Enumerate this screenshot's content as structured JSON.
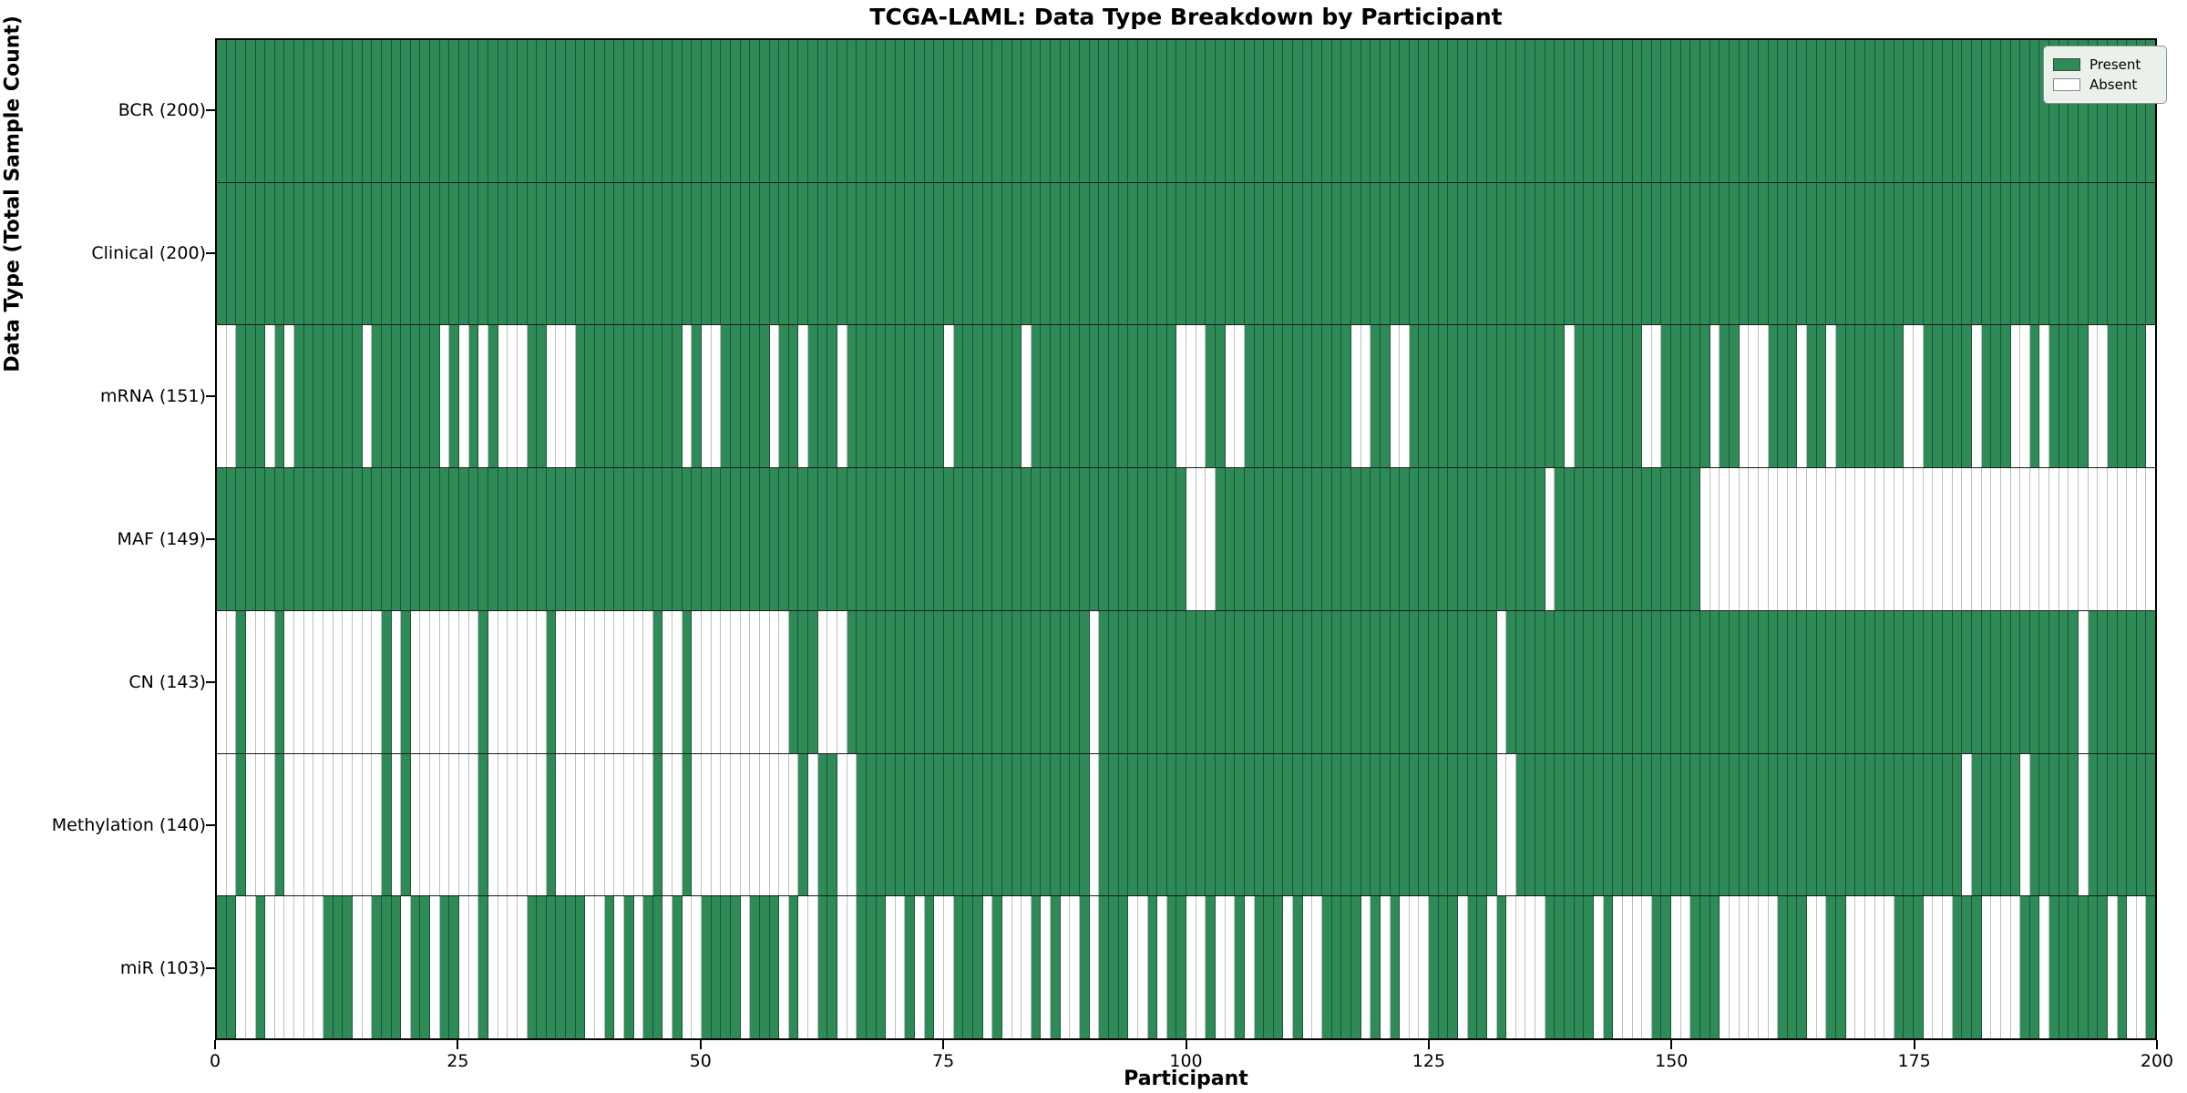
{
  "title": "TCGA-LAML: Data Type Breakdown by Participant",
  "xlabel": "Participant",
  "ylabel": "Data Type (Total Sample Count)",
  "legend": {
    "present_label": "Present",
    "absent_label": "Absent"
  },
  "colors": {
    "present": "#2e8b57",
    "absent": "#ffffff",
    "legend_bg": "#e9f1ea"
  },
  "chart_data": {
    "type": "heatmap",
    "title": "TCGA-LAML: Data Type Breakdown by Participant",
    "xlabel": "Participant",
    "ylabel": "Data Type (Total Sample Count)",
    "x_range": [
      0,
      200
    ],
    "x_ticks": [
      "0",
      "25",
      "50",
      "75",
      "100",
      "125",
      "150",
      "175",
      "200"
    ],
    "legend": [
      "Present",
      "Absent"
    ],
    "legend_position": "upper right",
    "grid": false,
    "n_participants": 200,
    "rows": [
      {
        "label": "BCR (200)",
        "name": "BCR",
        "total": 200,
        "pattern": "11111111111111111111111111111111111111111111111111111111111111111111111111111111111111111111111111111111111111111111111111111111111111111111111111111111111111111111111111111111111111111111111111111111"
      },
      {
        "label": "Clinical (200)",
        "name": "Clinical",
        "total": 200,
        "pattern": "11111111111111111111111111111111111111111111111111111111111111111111111111111111111111111111111111111111111111111111111111111111111111111111111111111111111111111111111111111111111111111111111111111111"
      },
      {
        "label": "mRNA (151)",
        "name": "mRNA",
        "total": 151,
        "pattern": "00111010111111101111111010101000110001111111111101001111101101110111111111101111111011111111111111100011001111111111100110011111111111111110111111100111110110001110110111111100111110111001011110011110"
      },
      {
        "label": "MAF (149)",
        "name": "MAF",
        "total": 149,
        "pattern": "11111111111111111111111111111111111111111111111111111111111111111111111111111111111111111111111111110001111111111111111111111111111111111011111111111111100000000000000000000000000000000000000000000000"
      },
      {
        "label": "CN (143)",
        "name": "CN",
        "total": 143,
        "pattern": "00100010000000000101000000010000001000000000010010000000000111000111111111111111111111111101111111111111111111111111111111111111111101111111111111111111111111111111111111111111111111111111111101111111"
      },
      {
        "label": "Methylation (140)",
        "name": "Methylation",
        "total": 140,
        "pattern": "00100010000000000101000000010000001000000000010010000000000010110011111111111111111111111101111111111111111111111111111111111111111100111111111111111111111111111111111111111111111101111101111101111111"
      },
      {
        "label": "miR (103)",
        "name": "miR",
        "total": 103,
        "pattern": "11001000000111001110110110010000111111001010110100111101110100110011100101001110100010100101110010110010010111010011110101000111011010000111110100001100111000000111001100000111000111000011011111101001"
      }
    ]
  }
}
